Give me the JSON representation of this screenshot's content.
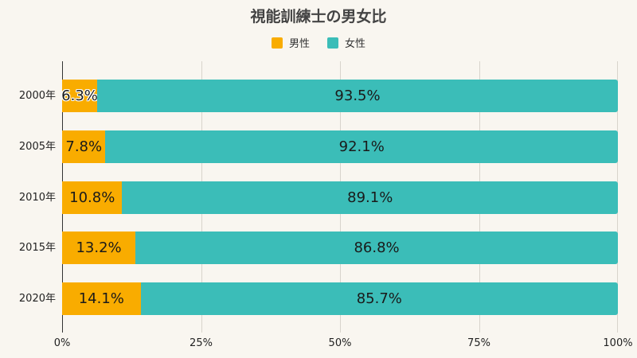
{
  "chart_data": {
    "type": "bar",
    "orientation": "horizontal",
    "stacked": true,
    "normalized": true,
    "title": "視能訓練士の男女比",
    "xlabel": "",
    "ylabel": "",
    "categories": [
      "2000年",
      "2005年",
      "2010年",
      "2015年",
      "2020年"
    ],
    "series": [
      {
        "name": "男性",
        "color": "#f9ac00",
        "values": [
          6.3,
          7.8,
          10.8,
          13.2,
          14.1
        ],
        "labels": [
          "6.3%",
          "7.8%",
          "10.8%",
          "13.2%",
          "14.1%"
        ]
      },
      {
        "name": "女性",
        "color": "#3bbdb8",
        "values": [
          93.5,
          92.1,
          89.1,
          86.8,
          85.7
        ],
        "labels": [
          "93.5%",
          "92.1%",
          "89.1%",
          "86.8%",
          "85.7%"
        ]
      }
    ],
    "xlim": [
      0,
      100
    ],
    "xticks": [
      "0%",
      "25%",
      "50%",
      "75%",
      "100%"
    ],
    "grid": true,
    "legend_position": "top"
  },
  "title": "視能訓練士の男女比",
  "legend": [
    {
      "label": "男性",
      "color": "#f9ac00"
    },
    {
      "label": "女性",
      "color": "#3bbdb8"
    }
  ],
  "xticks": [
    "0%",
    "25%",
    "50%",
    "75%",
    "100%"
  ],
  "rows": [
    {
      "year": "2000年",
      "male": "6.3%",
      "female": "93.5%"
    },
    {
      "year": "2005年",
      "male": "7.8%",
      "female": "92.1%"
    },
    {
      "year": "2010年",
      "male": "10.8%",
      "female": "89.1%"
    },
    {
      "year": "2015年",
      "male": "13.2%",
      "female": "86.8%"
    },
    {
      "year": "2020年",
      "male": "14.1%",
      "female": "85.7%"
    }
  ]
}
